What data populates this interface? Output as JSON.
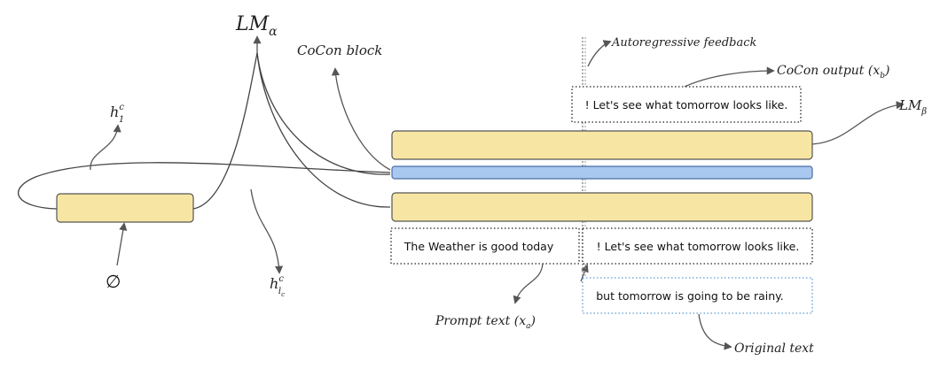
{
  "labels": {
    "lm_alpha": "LM",
    "lm_alpha_sub": "α",
    "lm_beta": "LM",
    "lm_beta_sub": "β",
    "cocon_block": "CoCon block",
    "h1c_main": "h",
    "h1c_sup": "c",
    "h1c_sub": "1",
    "hlc_main": "h",
    "hlc_sup": "c",
    "hlc_sub": "l",
    "hlc_subsub": "c",
    "empty_set": "∅",
    "autoregressive_feedback": "Autoregressive feedback",
    "cocon_output": "CoCon output (x",
    "cocon_output_sub": "b",
    "cocon_output_close": ")",
    "prompt_text": "Prompt text (x",
    "prompt_text_sub": "a",
    "prompt_text_close": ")",
    "original_text": "Original text"
  },
  "boxes": {
    "output_top": "! Let's see what tomorrow looks like.",
    "prompt": "The Weather is good today",
    "output_bottom": "! Let's see what tomorrow looks like.",
    "original": "but tomorrow is going to be rainy."
  },
  "colors": {
    "layer_fill": "#f7e6a3",
    "cocon_fill": "#a9c8f0",
    "original_border": "#5b9bd5"
  }
}
